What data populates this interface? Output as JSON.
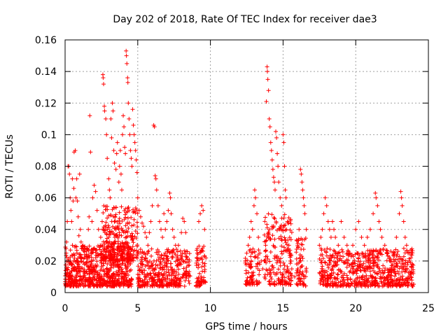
{
  "chart_data": {
    "type": "scatter",
    "title": "Day 202 of 2018, Rate Of TEC Index for receiver dae3",
    "xlabel": "GPS time / hours",
    "ylabel": "ROTI / TECUs",
    "xlim": [
      0,
      25
    ],
    "ylim": [
      0,
      0.16
    ],
    "xticks": [
      "0",
      "5",
      "10",
      "15",
      "20",
      "25"
    ],
    "yticks": [
      "0",
      "0.02",
      "0.04",
      "0.06",
      "0.08",
      "0.1",
      "0.12",
      "0.14",
      "0.16"
    ],
    "grid": true,
    "marker": "+",
    "color": "#ff0000",
    "series": [
      {
        "points": [
          [
            0.05,
            0.012
          ],
          [
            0.08,
            0.025
          ],
          [
            0.1,
            0.032
          ],
          [
            0.15,
            0.045
          ],
          [
            0.2,
            0.08
          ],
          [
            0.25,
            0.08
          ],
          [
            0.3,
            0.075
          ],
          [
            0.35,
            0.06
          ],
          [
            0.4,
            0.052
          ],
          [
            0.45,
            0.045
          ],
          [
            0.5,
            0.072
          ],
          [
            0.55,
            0.058
          ],
          [
            0.6,
            0.066
          ],
          [
            0.62,
            0.089
          ],
          [
            0.7,
            0.09
          ],
          [
            0.75,
            0.06
          ],
          [
            0.8,
            0.072
          ],
          [
            0.85,
            0.058
          ],
          [
            0.9,
            0.048
          ],
          [
            0.95,
            0.036
          ],
          [
            1.0,
            0.075
          ],
          [
            1.05,
            0.04
          ],
          [
            1.1,
            0.032
          ],
          [
            1.2,
            0.028
          ],
          [
            1.35,
            0.024
          ],
          [
            1.5,
            0.022
          ],
          [
            1.6,
            0.04
          ],
          [
            1.65,
            0.048
          ],
          [
            1.7,
            0.112
          ],
          [
            1.75,
            0.089
          ],
          [
            1.85,
            0.045
          ],
          [
            1.9,
            0.06
          ],
          [
            2.0,
            0.068
          ],
          [
            2.1,
            0.064
          ],
          [
            2.2,
            0.052
          ],
          [
            2.3,
            0.04
          ],
          [
            2.45,
            0.035
          ],
          [
            2.55,
            0.045
          ],
          [
            2.6,
            0.138
          ],
          [
            2.62,
            0.136
          ],
          [
            2.65,
            0.132
          ],
          [
            2.7,
            0.118
          ],
          [
            2.72,
            0.115
          ],
          [
            2.8,
            0.11
          ],
          [
            2.85,
            0.1
          ],
          [
            2.9,
            0.085
          ],
          [
            3.0,
            0.072
          ],
          [
            3.05,
            0.065
          ],
          [
            3.1,
            0.06
          ],
          [
            3.15,
            0.11
          ],
          [
            3.2,
            0.098
          ],
          [
            3.25,
            0.12
          ],
          [
            3.3,
            0.115
          ],
          [
            3.35,
            0.09
          ],
          [
            3.4,
            0.082
          ],
          [
            3.5,
            0.078
          ],
          [
            3.55,
            0.088
          ],
          [
            3.6,
            0.095
          ],
          [
            3.7,
            0.07
          ],
          [
            3.75,
            0.08
          ],
          [
            3.8,
            0.09
          ],
          [
            3.85,
            0.075
          ],
          [
            3.9,
            0.065
          ],
          [
            3.95,
            0.1
          ],
          [
            4.0,
            0.112
          ],
          [
            4.05,
            0.105
          ],
          [
            4.1,
            0.092
          ],
          [
            4.15,
            0.088
          ],
          [
            4.2,
            0.153
          ],
          [
            4.22,
            0.15
          ],
          [
            4.25,
            0.145
          ],
          [
            4.3,
            0.136
          ],
          [
            4.32,
            0.133
          ],
          [
            4.35,
            0.12
          ],
          [
            4.4,
            0.11
          ],
          [
            4.45,
            0.1
          ],
          [
            4.5,
            0.09
          ],
          [
            4.55,
            0.085
          ],
          [
            4.6,
            0.08
          ],
          [
            4.65,
            0.116
          ],
          [
            4.7,
            0.106
          ],
          [
            4.75,
            0.1
          ],
          [
            4.8,
            0.095
          ],
          [
            4.85,
            0.09
          ],
          [
            4.9,
            0.084
          ],
          [
            4.95,
            0.076
          ],
          [
            5.0,
            0.06
          ],
          [
            5.1,
            0.052
          ],
          [
            5.2,
            0.048
          ],
          [
            5.3,
            0.044
          ],
          [
            5.4,
            0.042
          ],
          [
            5.5,
            0.038
          ],
          [
            5.6,
            0.035
          ],
          [
            5.7,
            0.03
          ],
          [
            5.8,
            0.038
          ],
          [
            5.9,
            0.045
          ],
          [
            6.0,
            0.055
          ],
          [
            6.1,
            0.106
          ],
          [
            6.15,
            0.105
          ],
          [
            6.2,
            0.074
          ],
          [
            6.25,
            0.072
          ],
          [
            6.3,
            0.065
          ],
          [
            6.4,
            0.055
          ],
          [
            6.5,
            0.045
          ],
          [
            6.6,
            0.04
          ],
          [
            6.7,
            0.035
          ],
          [
            6.8,
            0.05
          ],
          [
            6.9,
            0.04
          ],
          [
            7.0,
            0.045
          ],
          [
            7.1,
            0.052
          ],
          [
            7.2,
            0.063
          ],
          [
            7.25,
            0.06
          ],
          [
            7.3,
            0.05
          ],
          [
            7.4,
            0.04
          ],
          [
            7.5,
            0.035
          ],
          [
            7.6,
            0.03
          ],
          [
            7.8,
            0.03
          ],
          [
            8.0,
            0.038
          ],
          [
            8.1,
            0.047
          ],
          [
            8.2,
            0.045
          ],
          [
            8.3,
            0.038
          ],
          [
            8.4,
            0.022
          ],
          [
            9.1,
            0.025
          ],
          [
            9.2,
            0.045
          ],
          [
            9.3,
            0.05
          ],
          [
            9.4,
            0.055
          ],
          [
            9.5,
            0.052
          ],
          [
            9.6,
            0.04
          ],
          [
            12.4,
            0.02
          ],
          [
            12.5,
            0.025
          ],
          [
            12.6,
            0.03
          ],
          [
            12.7,
            0.035
          ],
          [
            12.8,
            0.045
          ],
          [
            12.9,
            0.04
          ],
          [
            13.0,
            0.055
          ],
          [
            13.05,
            0.065
          ],
          [
            13.1,
            0.06
          ],
          [
            13.2,
            0.05
          ],
          [
            13.3,
            0.035
          ],
          [
            13.4,
            0.025
          ],
          [
            13.5,
            0.02
          ],
          [
            13.6,
            0.015
          ],
          [
            13.7,
            0.02
          ],
          [
            13.8,
            0.03
          ],
          [
            13.85,
            0.121
          ],
          [
            13.9,
            0.143
          ],
          [
            13.92,
            0.14
          ],
          [
            13.95,
            0.135
          ],
          [
            14.0,
            0.128
          ],
          [
            14.05,
            0.11
          ],
          [
            14.1,
            0.105
          ],
          [
            14.15,
            0.095
          ],
          [
            14.2,
            0.09
          ],
          [
            14.25,
            0.084
          ],
          [
            14.3,
            0.078
          ],
          [
            14.35,
            0.073
          ],
          [
            14.4,
            0.07
          ],
          [
            14.45,
            0.065
          ],
          [
            14.5,
            0.102
          ],
          [
            14.55,
            0.098
          ],
          [
            14.6,
            0.088
          ],
          [
            14.65,
            0.08
          ],
          [
            14.7,
            0.07
          ],
          [
            14.8,
            0.06
          ],
          [
            14.9,
            0.055
          ],
          [
            15.0,
            0.1
          ],
          [
            15.05,
            0.095
          ],
          [
            15.1,
            0.08
          ],
          [
            15.15,
            0.065
          ],
          [
            15.2,
            0.06
          ],
          [
            15.3,
            0.045
          ],
          [
            15.4,
            0.03
          ],
          [
            15.5,
            0.02
          ],
          [
            15.6,
            0.015
          ],
          [
            15.8,
            0.01
          ],
          [
            16.0,
            0.03
          ],
          [
            16.1,
            0.04
          ],
          [
            16.2,
            0.078
          ],
          [
            16.25,
            0.075
          ],
          [
            16.3,
            0.07
          ],
          [
            16.35,
            0.065
          ],
          [
            16.4,
            0.06
          ],
          [
            16.45,
            0.055
          ],
          [
            16.5,
            0.05
          ],
          [
            16.6,
            0.04
          ],
          [
            17.5,
            0.03
          ],
          [
            17.6,
            0.035
          ],
          [
            17.7,
            0.04
          ],
          [
            17.8,
            0.05
          ],
          [
            17.9,
            0.06
          ],
          [
            18.0,
            0.055
          ],
          [
            18.1,
            0.045
          ],
          [
            18.2,
            0.04
          ],
          [
            18.3,
            0.035
          ],
          [
            18.4,
            0.045
          ],
          [
            18.5,
            0.04
          ],
          [
            18.6,
            0.035
          ],
          [
            18.8,
            0.03
          ],
          [
            19.0,
            0.045
          ],
          [
            19.2,
            0.035
          ],
          [
            19.4,
            0.03
          ],
          [
            19.6,
            0.025
          ],
          [
            19.8,
            0.03
          ],
          [
            20.0,
            0.04
          ],
          [
            20.2,
            0.045
          ],
          [
            20.4,
            0.035
          ],
          [
            20.6,
            0.03
          ],
          [
            20.8,
            0.035
          ],
          [
            21.0,
            0.04
          ],
          [
            21.2,
            0.05
          ],
          [
            21.35,
            0.063
          ],
          [
            21.4,
            0.06
          ],
          [
            21.5,
            0.055
          ],
          [
            21.6,
            0.045
          ],
          [
            21.7,
            0.04
          ],
          [
            21.8,
            0.035
          ],
          [
            22.0,
            0.03
          ],
          [
            22.2,
            0.025
          ],
          [
            22.4,
            0.02
          ],
          [
            22.6,
            0.025
          ],
          [
            22.8,
            0.035
          ],
          [
            23.0,
            0.05
          ],
          [
            23.1,
            0.064
          ],
          [
            23.15,
            0.06
          ],
          [
            23.2,
            0.055
          ],
          [
            23.3,
            0.045
          ],
          [
            23.4,
            0.035
          ],
          [
            23.5,
            0.03
          ],
          [
            23.6,
            0.025
          ],
          [
            23.7,
            0.02
          ],
          [
            23.8,
            0.022
          ],
          [
            23.9,
            0.018
          ]
        ]
      }
    ],
    "background_clusters": [
      {
        "x": [
          0.0,
          4.6
        ],
        "y": [
          0.004,
          0.03
        ],
        "count": 700
      },
      {
        "x": [
          2.6,
          5.0
        ],
        "y": [
          0.02,
          0.055
        ],
        "count": 260
      },
      {
        "x": [
          5.0,
          8.6
        ],
        "y": [
          0.004,
          0.028
        ],
        "count": 380
      },
      {
        "x": [
          9.0,
          9.7
        ],
        "y": [
          0.004,
          0.03
        ],
        "count": 70
      },
      {
        "x": [
          12.4,
          13.4
        ],
        "y": [
          0.005,
          0.028
        ],
        "count": 80
      },
      {
        "x": [
          13.7,
          15.6
        ],
        "y": [
          0.005,
          0.05
        ],
        "count": 200
      },
      {
        "x": [
          15.9,
          16.6
        ],
        "y": [
          0.004,
          0.035
        ],
        "count": 70
      },
      {
        "x": [
          17.5,
          24.0
        ],
        "y": [
          0.004,
          0.028
        ],
        "count": 650
      }
    ]
  }
}
